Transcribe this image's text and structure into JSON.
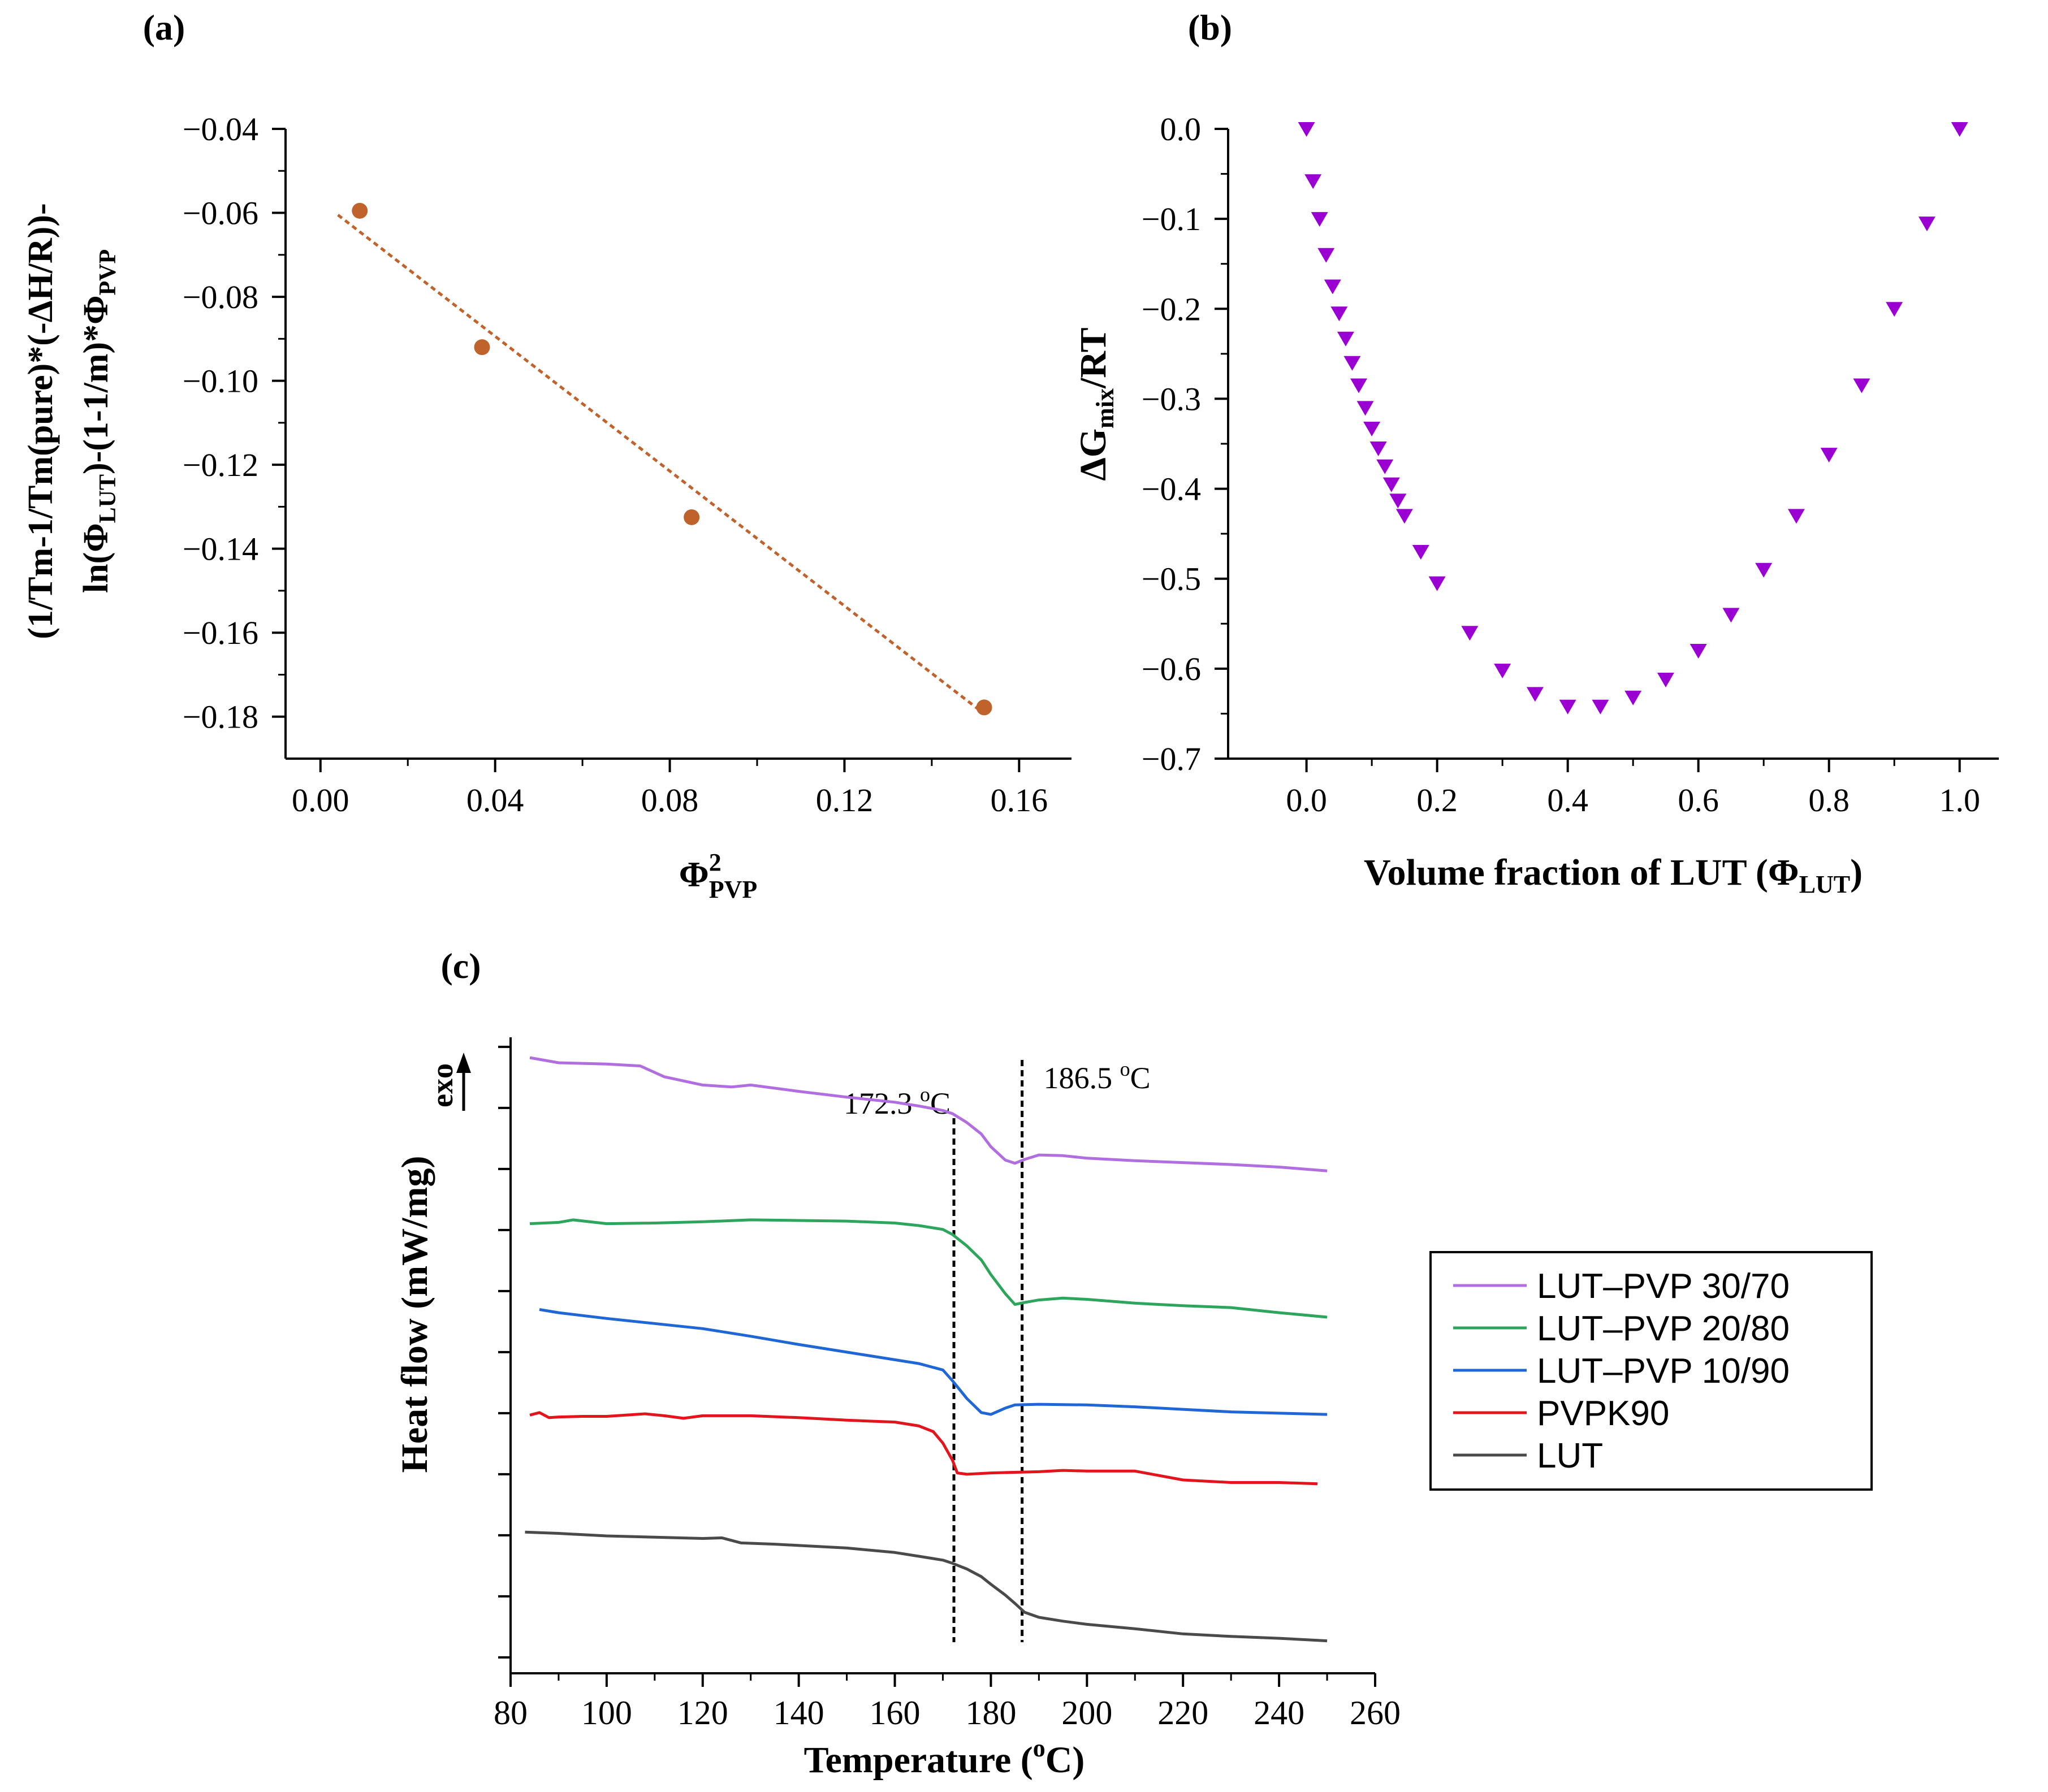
{
  "chart_data": [
    {
      "panel": "a",
      "panel_label": "(a)",
      "type": "scatter",
      "title": "",
      "xlabel": {
        "main": "Φ",
        "sup": "2",
        "sub": "PVP"
      },
      "ylabel": {
        "line1": "(1/Tm-1/Tm(pure)*(-ΔH/R))-",
        "line2_a": "ln(Φ",
        "line2_sub1": "LUT",
        "line2_b": ")-(1-1/m)*Φ",
        "line2_sub2": "PVP"
      },
      "xlim": [
        -0.008,
        0.172
      ],
      "ylim": [
        -0.19,
        -0.04
      ],
      "xticks": [
        0.0,
        0.04,
        0.08,
        0.12,
        0.16
      ],
      "xtick_labels": [
        "0.00",
        "0.04",
        "0.08",
        "0.12",
        "0.16"
      ],
      "yticks": [
        -0.04,
        -0.06,
        -0.08,
        -0.1,
        -0.12,
        -0.14,
        -0.16,
        -0.18
      ],
      "ytick_labels": [
        "−0.04",
        "−0.06",
        "−0.08",
        "−0.10",
        "−0.12",
        "−0.14",
        "−0.16",
        "−0.18"
      ],
      "series": [
        {
          "name": "data",
          "color": "#c0622b",
          "marker": "circle",
          "x": [
            0.009,
            0.037,
            0.085,
            0.152
          ],
          "y": [
            -0.0595,
            -0.092,
            -0.1325,
            -0.1778
          ]
        }
      ],
      "fit_line": {
        "color": "#c0622b",
        "style": "dotted",
        "x": [
          0.004,
          0.151
        ],
        "y": [
          -0.0605,
          -0.1785
        ]
      }
    },
    {
      "panel": "b",
      "panel_label": "(b)",
      "type": "scatter",
      "title": "",
      "xlabel": {
        "main": "Volume fraction of LUT (Φ",
        "sub": "LUT",
        "end": ")"
      },
      "ylabel": {
        "main": "ΔG",
        "sub": "mix",
        "end": "/RT"
      },
      "xlim": [
        -0.12,
        1.06
      ],
      "ylim": [
        -0.7,
        0.0
      ],
      "xticks": [
        0.0,
        0.2,
        0.4,
        0.6,
        0.8,
        1.0
      ],
      "xtick_labels": [
        "0.0",
        "0.2",
        "0.4",
        "0.6",
        "0.8",
        "1.0"
      ],
      "yticks": [
        0.0,
        -0.1,
        -0.2,
        -0.3,
        -0.4,
        -0.5,
        -0.6,
        -0.7
      ],
      "ytick_labels": [
        "0.0",
        "−0.1",
        "−0.2",
        "−0.3",
        "−0.4",
        "−0.5",
        "−0.6",
        "−0.7"
      ],
      "series": [
        {
          "name": "ΔGmix/RT",
          "color": "#9b00d3",
          "marker": "triangle-down",
          "x": [
            0.0,
            0.01,
            0.02,
            0.03,
            0.04,
            0.05,
            0.06,
            0.07,
            0.08,
            0.09,
            0.1,
            0.11,
            0.12,
            0.13,
            0.14,
            0.15,
            0.175,
            0.2,
            0.25,
            0.3,
            0.35,
            0.4,
            0.45,
            0.5,
            0.55,
            0.6,
            0.65,
            0.7,
            0.75,
            0.8,
            0.85,
            0.9,
            0.95,
            1.0
          ],
          "y": [
            0.0,
            -0.058,
            -0.1,
            -0.14,
            -0.175,
            -0.205,
            -0.233,
            -0.26,
            -0.285,
            -0.31,
            -0.333,
            -0.355,
            -0.375,
            -0.395,
            -0.413,
            -0.43,
            -0.47,
            -0.505,
            -0.56,
            -0.602,
            -0.628,
            -0.642,
            -0.642,
            -0.632,
            -0.612,
            -0.58,
            -0.54,
            -0.49,
            -0.43,
            -0.362,
            -0.285,
            -0.2,
            -0.105,
            0.0
          ]
        }
      ]
    },
    {
      "panel": "c",
      "panel_label": "(c)",
      "type": "line",
      "title": "",
      "xlabel": "Temperature (°C)",
      "xlabel_parts": {
        "a": "Temperature (",
        "sup": "o",
        "b": "C)"
      },
      "ylabel": "Heat flow (mW/mg)",
      "exo_label": "exo",
      "xlim": [
        80,
        260
      ],
      "ylim": [
        0,
        10
      ],
      "xticks": [
        80,
        100,
        120,
        140,
        160,
        180,
        200,
        220,
        240,
        260
      ],
      "xtick_labels": [
        "80",
        "100",
        "120",
        "140",
        "160",
        "180",
        "200",
        "220",
        "240",
        "260"
      ],
      "annotations": [
        {
          "x": 172.3,
          "label_value": "172.3",
          "unit_sup": "o",
          "unit": "C"
        },
        {
          "x": 186.5,
          "label_value": "186.5",
          "unit_sup": "o",
          "unit": "C"
        }
      ],
      "legend_position": "right",
      "series": [
        {
          "name": "LUT–PVP 30/70",
          "color": "#b06ee0",
          "x": [
            84,
            90,
            100,
            107,
            112,
            120,
            126,
            130,
            140,
            150,
            160,
            165,
            170,
            172,
            175,
            178,
            180,
            183,
            185,
            187,
            190,
            195,
            200,
            210,
            220,
            230,
            240,
            250
          ],
          "y": [
            9.68,
            9.6,
            9.58,
            9.55,
            9.38,
            9.25,
            9.22,
            9.25,
            9.15,
            9.06,
            8.98,
            8.92,
            8.85,
            8.8,
            8.66,
            8.48,
            8.28,
            8.07,
            8.02,
            8.08,
            8.15,
            8.14,
            8.1,
            8.06,
            8.03,
            8.0,
            7.96,
            7.9
          ]
        },
        {
          "name": "LUT–PVP 20/80",
          "color": "#2ea55c",
          "x": [
            84,
            90,
            93,
            100,
            110,
            120,
            130,
            140,
            150,
            160,
            165,
            170,
            172,
            175,
            178,
            180,
            183,
            185,
            187,
            190,
            195,
            200,
            210,
            220,
            230,
            240,
            250
          ],
          "y": [
            7.07,
            7.09,
            7.13,
            7.07,
            7.08,
            7.1,
            7.13,
            7.12,
            7.11,
            7.08,
            7.04,
            6.98,
            6.9,
            6.72,
            6.5,
            6.27,
            5.97,
            5.8,
            5.83,
            5.87,
            5.9,
            5.88,
            5.82,
            5.78,
            5.75,
            5.67,
            5.6
          ]
        },
        {
          "name": "LUT–PVP 10/90",
          "color": "#1f66d6",
          "x": [
            86,
            90,
            100,
            110,
            120,
            130,
            140,
            150,
            160,
            165,
            170,
            172,
            175,
            178,
            180,
            183,
            185,
            190,
            200,
            210,
            220,
            230,
            240,
            250
          ],
          "y": [
            5.72,
            5.67,
            5.58,
            5.5,
            5.42,
            5.3,
            5.17,
            5.05,
            4.93,
            4.87,
            4.77,
            4.6,
            4.32,
            4.1,
            4.07,
            4.17,
            4.22,
            4.23,
            4.22,
            4.19,
            4.15,
            4.11,
            4.09,
            4.07
          ]
        },
        {
          "name": "PVPK90",
          "color": "#e3141b",
          "x": [
            84,
            86,
            88,
            90,
            95,
            100,
            108,
            112,
            116,
            120,
            130,
            140,
            150,
            160,
            165,
            168,
            170,
            172,
            173,
            175,
            180,
            190,
            195,
            200,
            210,
            220,
            230,
            240,
            248
          ],
          "y": [
            4.06,
            4.1,
            4.02,
            4.03,
            4.04,
            4.04,
            4.08,
            4.05,
            4.01,
            4.05,
            4.05,
            4.02,
            3.98,
            3.95,
            3.89,
            3.8,
            3.62,
            3.35,
            3.15,
            3.13,
            3.15,
            3.17,
            3.19,
            3.18,
            3.18,
            3.04,
            3.0,
            3.0,
            2.98
          ]
        },
        {
          "name": "LUT",
          "color": "#4a4a4a",
          "x": [
            83,
            90,
            95,
            100,
            110,
            120,
            124,
            128,
            135,
            140,
            150,
            160,
            165,
            170,
            172,
            175,
            178,
            180,
            183,
            185,
            187,
            190,
            195,
            200,
            210,
            220,
            230,
            240,
            250
          ],
          "y": [
            2.22,
            2.2,
            2.18,
            2.16,
            2.14,
            2.12,
            2.13,
            2.05,
            2.03,
            2.01,
            1.97,
            1.9,
            1.84,
            1.78,
            1.73,
            1.64,
            1.52,
            1.4,
            1.23,
            1.1,
            0.96,
            0.88,
            0.82,
            0.77,
            0.7,
            0.62,
            0.58,
            0.55,
            0.51
          ]
        }
      ]
    }
  ]
}
